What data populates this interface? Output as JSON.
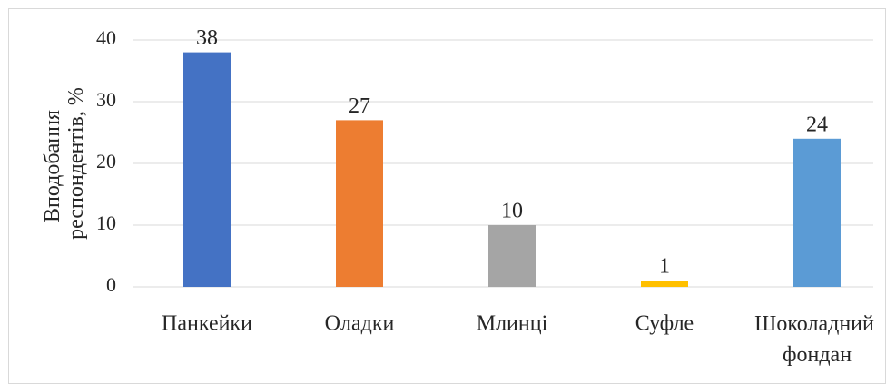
{
  "chart_data": {
    "type": "bar",
    "y_label": "Вподобання респондентів, %",
    "categories": [
      "Панкейки",
      "Оладки",
      "Млинці",
      "Суфле",
      "Шоколадний фондан"
    ],
    "values": [
      38,
      27,
      10,
      1,
      24
    ],
    "colors": [
      "#4472c4",
      "#ed7d31",
      "#a5a5a5",
      "#ffc000",
      "#5b9bd5"
    ],
    "ylim": [
      0,
      40
    ],
    "yticks": [
      0,
      10,
      20,
      30,
      40
    ],
    "grid": true
  }
}
